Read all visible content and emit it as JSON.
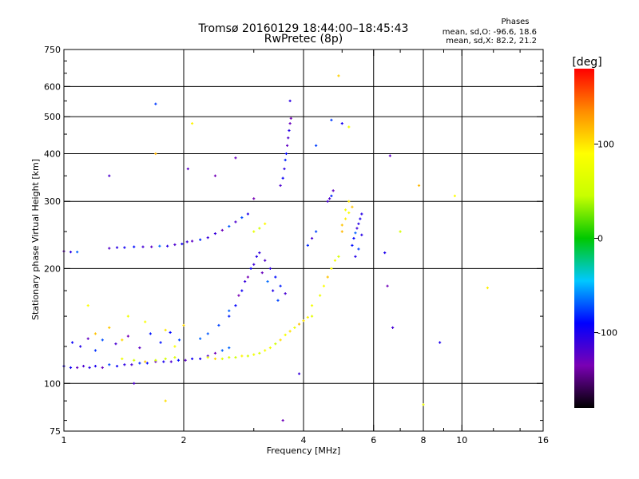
{
  "header": {
    "title": "Tromsø 20160129 18:44:00–18:45:43",
    "subtitle": "RwPretec (8p)",
    "phase_title": "Phases",
    "phase_line_o": "mean, sd,O: -96.6, 18.6",
    "phase_line_x": "mean, sd,X:  82.2, 21.2"
  },
  "colorbar": {
    "label": "[deg]",
    "ticks": [
      {
        "value": 100,
        "label": "100"
      },
      {
        "value": 0,
        "label": "0"
      },
      {
        "value": -100,
        "label": "-100"
      }
    ],
    "range": [
      -180,
      180
    ],
    "colors": [
      "#000000",
      "#7a00b4",
      "#0000ff",
      "#00c8ff",
      "#00c800",
      "#c8ff00",
      "#ffff00",
      "#ff8c00",
      "#ff0000"
    ]
  },
  "chart_data": {
    "type": "scatter",
    "title": "Tromsø 20160129 18:44:00–18:45:43",
    "subtitle": "RwPretec (8p)",
    "xlabel": "Frequency [MHz]",
    "ylabel": "Stationary phase Virtual Height [km]",
    "xscale": "log",
    "yscale": "log",
    "xlim": [
      1,
      16
    ],
    "ylim": [
      75,
      750
    ],
    "xticks": [
      {
        "value": 1,
        "label": "1"
      },
      {
        "value": 2,
        "label": "2"
      },
      {
        "value": 4,
        "label": "4"
      },
      {
        "value": 6,
        "label": "6"
      },
      {
        "value": 8,
        "label": "8"
      },
      {
        "value": 10,
        "label": "10"
      },
      {
        "value": 16,
        "label": "16"
      }
    ],
    "xgrid": [
      1,
      2,
      4,
      6,
      8,
      10,
      16
    ],
    "xminor": [
      3,
      5,
      7,
      9,
      12,
      14
    ],
    "yticks": [
      {
        "value": 75,
        "label": "75"
      },
      {
        "value": 100,
        "label": "100"
      },
      {
        "value": 200,
        "label": "200"
      },
      {
        "value": 300,
        "label": "300"
      },
      {
        "value": 400,
        "label": "400"
      },
      {
        "value": 500,
        "label": "500"
      },
      {
        "value": 600,
        "label": "600"
      },
      {
        "value": 750,
        "label": "750"
      }
    ],
    "ygrid": [
      100,
      200,
      300,
      400,
      500,
      600
    ],
    "yminor": [
      80,
      90,
      125,
      150,
      175,
      250,
      350,
      450,
      550,
      650,
      700
    ],
    "color_variable": "phase [deg]",
    "grid": true,
    "series": [
      {
        "name": "O",
        "points": [
          [
            1.0,
            111
          ],
          [
            1.04,
            110
          ],
          [
            1.08,
            110
          ],
          [
            1.12,
            111
          ],
          [
            1.16,
            110
          ],
          [
            1.2,
            111
          ],
          [
            1.25,
            110
          ],
          [
            1.3,
            112
          ],
          [
            1.36,
            111
          ],
          [
            1.42,
            112
          ],
          [
            1.48,
            112
          ],
          [
            1.55,
            113
          ],
          [
            1.62,
            113
          ],
          [
            1.7,
            114
          ],
          [
            1.78,
            114
          ],
          [
            1.86,
            114
          ],
          [
            1.94,
            115
          ],
          [
            2.02,
            115
          ],
          [
            2.1,
            116
          ],
          [
            2.2,
            116
          ],
          [
            2.3,
            118
          ],
          [
            2.4,
            120
          ],
          [
            2.5,
            122
          ],
          [
            2.6,
            124
          ],
          [
            1.0,
            222
          ],
          [
            1.04,
            221
          ],
          [
            1.08,
            221
          ],
          [
            1.3,
            226
          ],
          [
            1.36,
            227
          ],
          [
            1.42,
            227
          ],
          [
            1.5,
            228
          ],
          [
            1.58,
            228
          ],
          [
            1.66,
            228
          ],
          [
            1.74,
            229
          ],
          [
            1.82,
            229
          ],
          [
            1.9,
            231
          ],
          [
            1.98,
            232
          ],
          [
            2.04,
            235
          ],
          [
            2.1,
            236
          ],
          [
            2.2,
            238
          ],
          [
            2.3,
            241
          ],
          [
            2.4,
            247
          ],
          [
            2.5,
            252
          ],
          [
            2.6,
            258
          ],
          [
            2.7,
            265
          ],
          [
            2.8,
            272
          ],
          [
            2.9,
            278
          ],
          [
            3.5,
            330
          ],
          [
            3.55,
            345
          ],
          [
            3.58,
            365
          ],
          [
            3.6,
            385
          ],
          [
            3.62,
            400
          ],
          [
            3.64,
            420
          ],
          [
            3.66,
            440
          ],
          [
            3.68,
            460
          ],
          [
            3.7,
            480
          ],
          [
            3.72,
            495
          ],
          [
            3.7,
            550
          ],
          [
            5.3,
            230
          ],
          [
            5.35,
            240
          ],
          [
            5.4,
            248
          ],
          [
            5.45,
            255
          ],
          [
            5.5,
            262
          ],
          [
            5.55,
            270
          ],
          [
            5.6,
            278
          ],
          [
            5.5,
            225
          ],
          [
            5.4,
            215
          ],
          [
            5.6,
            245
          ],
          [
            4.6,
            300
          ],
          [
            4.65,
            305
          ],
          [
            4.7,
            310
          ],
          [
            4.75,
            320
          ],
          [
            4.2,
            240
          ],
          [
            4.1,
            230
          ],
          [
            4.3,
            250
          ],
          [
            2.2,
            131
          ],
          [
            2.3,
            135
          ],
          [
            2.45,
            142
          ],
          [
            2.6,
            150
          ],
          [
            2.7,
            160
          ],
          [
            2.8,
            175
          ],
          [
            2.9,
            190
          ],
          [
            3.0,
            205
          ],
          [
            3.1,
            220
          ],
          [
            3.2,
            210
          ],
          [
            3.3,
            200
          ],
          [
            3.4,
            190
          ],
          [
            3.5,
            180
          ],
          [
            3.6,
            172
          ],
          [
            2.6,
            155
          ],
          [
            2.75,
            170
          ],
          [
            2.85,
            185
          ],
          [
            2.95,
            200
          ],
          [
            3.05,
            215
          ],
          [
            3.15,
            195
          ],
          [
            3.25,
            185
          ],
          [
            3.35,
            175
          ],
          [
            3.45,
            165
          ],
          [
            1.05,
            128
          ],
          [
            1.1,
            125
          ],
          [
            1.15,
            131
          ],
          [
            1.2,
            122
          ],
          [
            1.25,
            130
          ],
          [
            1.35,
            127
          ],
          [
            1.45,
            133
          ],
          [
            1.55,
            124
          ],
          [
            1.65,
            135
          ],
          [
            1.75,
            128
          ],
          [
            1.85,
            136
          ],
          [
            1.95,
            130
          ],
          [
            1.3,
            350
          ],
          [
            1.7,
            540
          ],
          [
            2.05,
            365
          ],
          [
            2.4,
            350
          ],
          [
            2.7,
            390
          ],
          [
            3.0,
            305
          ],
          [
            5.0,
            480
          ],
          [
            4.7,
            490
          ],
          [
            4.3,
            420
          ],
          [
            6.6,
            395
          ],
          [
            6.4,
            220
          ],
          [
            6.5,
            180
          ],
          [
            6.7,
            140
          ],
          [
            8.8,
            128
          ],
          [
            3.55,
            80
          ],
          [
            3.9,
            106
          ],
          [
            1.5,
            100
          ]
        ]
      },
      {
        "name": "X",
        "points": [
          [
            2.3,
            117
          ],
          [
            2.4,
            116
          ],
          [
            2.5,
            116
          ],
          [
            2.6,
            117
          ],
          [
            2.7,
            117
          ],
          [
            2.8,
            118
          ],
          [
            2.9,
            118
          ],
          [
            3.0,
            119
          ],
          [
            3.1,
            120
          ],
          [
            3.2,
            122
          ],
          [
            3.3,
            124
          ],
          [
            3.4,
            127
          ],
          [
            3.5,
            130
          ],
          [
            3.6,
            134
          ],
          [
            3.7,
            137
          ],
          [
            3.8,
            140
          ],
          [
            3.9,
            143
          ],
          [
            4.0,
            146
          ],
          [
            4.1,
            149
          ],
          [
            4.2,
            150
          ],
          [
            1.4,
            116
          ],
          [
            1.5,
            115
          ],
          [
            1.6,
            114
          ],
          [
            1.7,
            115
          ],
          [
            1.8,
            116
          ],
          [
            1.9,
            117
          ],
          [
            3.0,
            250
          ],
          [
            3.1,
            255
          ],
          [
            3.2,
            262
          ],
          [
            4.2,
            160
          ],
          [
            4.4,
            170
          ],
          [
            4.5,
            180
          ],
          [
            4.6,
            190
          ],
          [
            4.7,
            200
          ],
          [
            4.8,
            210
          ],
          [
            4.9,
            215
          ],
          [
            5.0,
            260
          ],
          [
            5.1,
            270
          ],
          [
            5.2,
            280
          ],
          [
            5.3,
            290
          ],
          [
            5.2,
            300
          ],
          [
            5.1,
            285
          ],
          [
            5.0,
            250
          ],
          [
            1.3,
            140
          ],
          [
            1.45,
            150
          ],
          [
            1.6,
            145
          ],
          [
            1.8,
            138
          ],
          [
            2.0,
            142
          ],
          [
            1.2,
            135
          ],
          [
            1.15,
            160
          ],
          [
            1.7,
            400
          ],
          [
            2.1,
            480
          ],
          [
            4.9,
            640
          ],
          [
            5.2,
            470
          ],
          [
            7.0,
            250
          ],
          [
            7.8,
            330
          ],
          [
            9.6,
            310
          ],
          [
            11.6,
            178
          ],
          [
            8.0,
            88
          ],
          [
            1.8,
            90
          ],
          [
            1.4,
            130
          ],
          [
            1.9,
            125
          ]
        ]
      }
    ]
  }
}
